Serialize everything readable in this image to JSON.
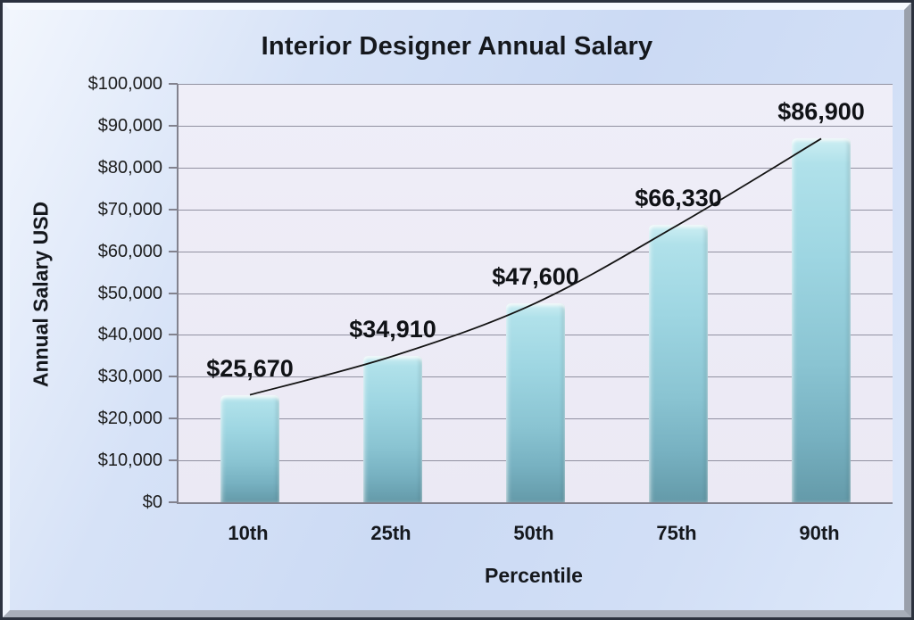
{
  "chart_data": {
    "type": "bar",
    "title": "Interior Designer Annual Salary",
    "xlabel": "Percentile",
    "ylabel": "Annual Salary USD",
    "categories": [
      "10th",
      "25th",
      "50th",
      "75th",
      "90th"
    ],
    "values": [
      25670,
      34910,
      47600,
      66330,
      86900
    ],
    "data_labels": [
      "$25,670",
      "$34,910",
      "$47,600",
      "$66,330",
      "$86,900"
    ],
    "y_ticks": [
      "$100,000",
      "$90,000",
      "$80,000",
      "$70,000",
      "$60,000",
      "$50,000",
      "$40,000",
      "$30,000",
      "$20,000",
      "$10,000",
      "$0"
    ],
    "ylim": [
      0,
      100000
    ],
    "grid": true,
    "legend": false,
    "trendline": true,
    "colors": {
      "bar_top": "#cdeef3",
      "bar_mid": "#9ed6e2",
      "bar_bottom": "#649aa9",
      "plot_background": "#ebe9f4",
      "gridline": "#9191a1",
      "axis_line": "#82828e",
      "trendline": "#141414",
      "text": "#15181d",
      "page_background": "#cbdaf4",
      "frame_border": "#2c323e"
    }
  }
}
